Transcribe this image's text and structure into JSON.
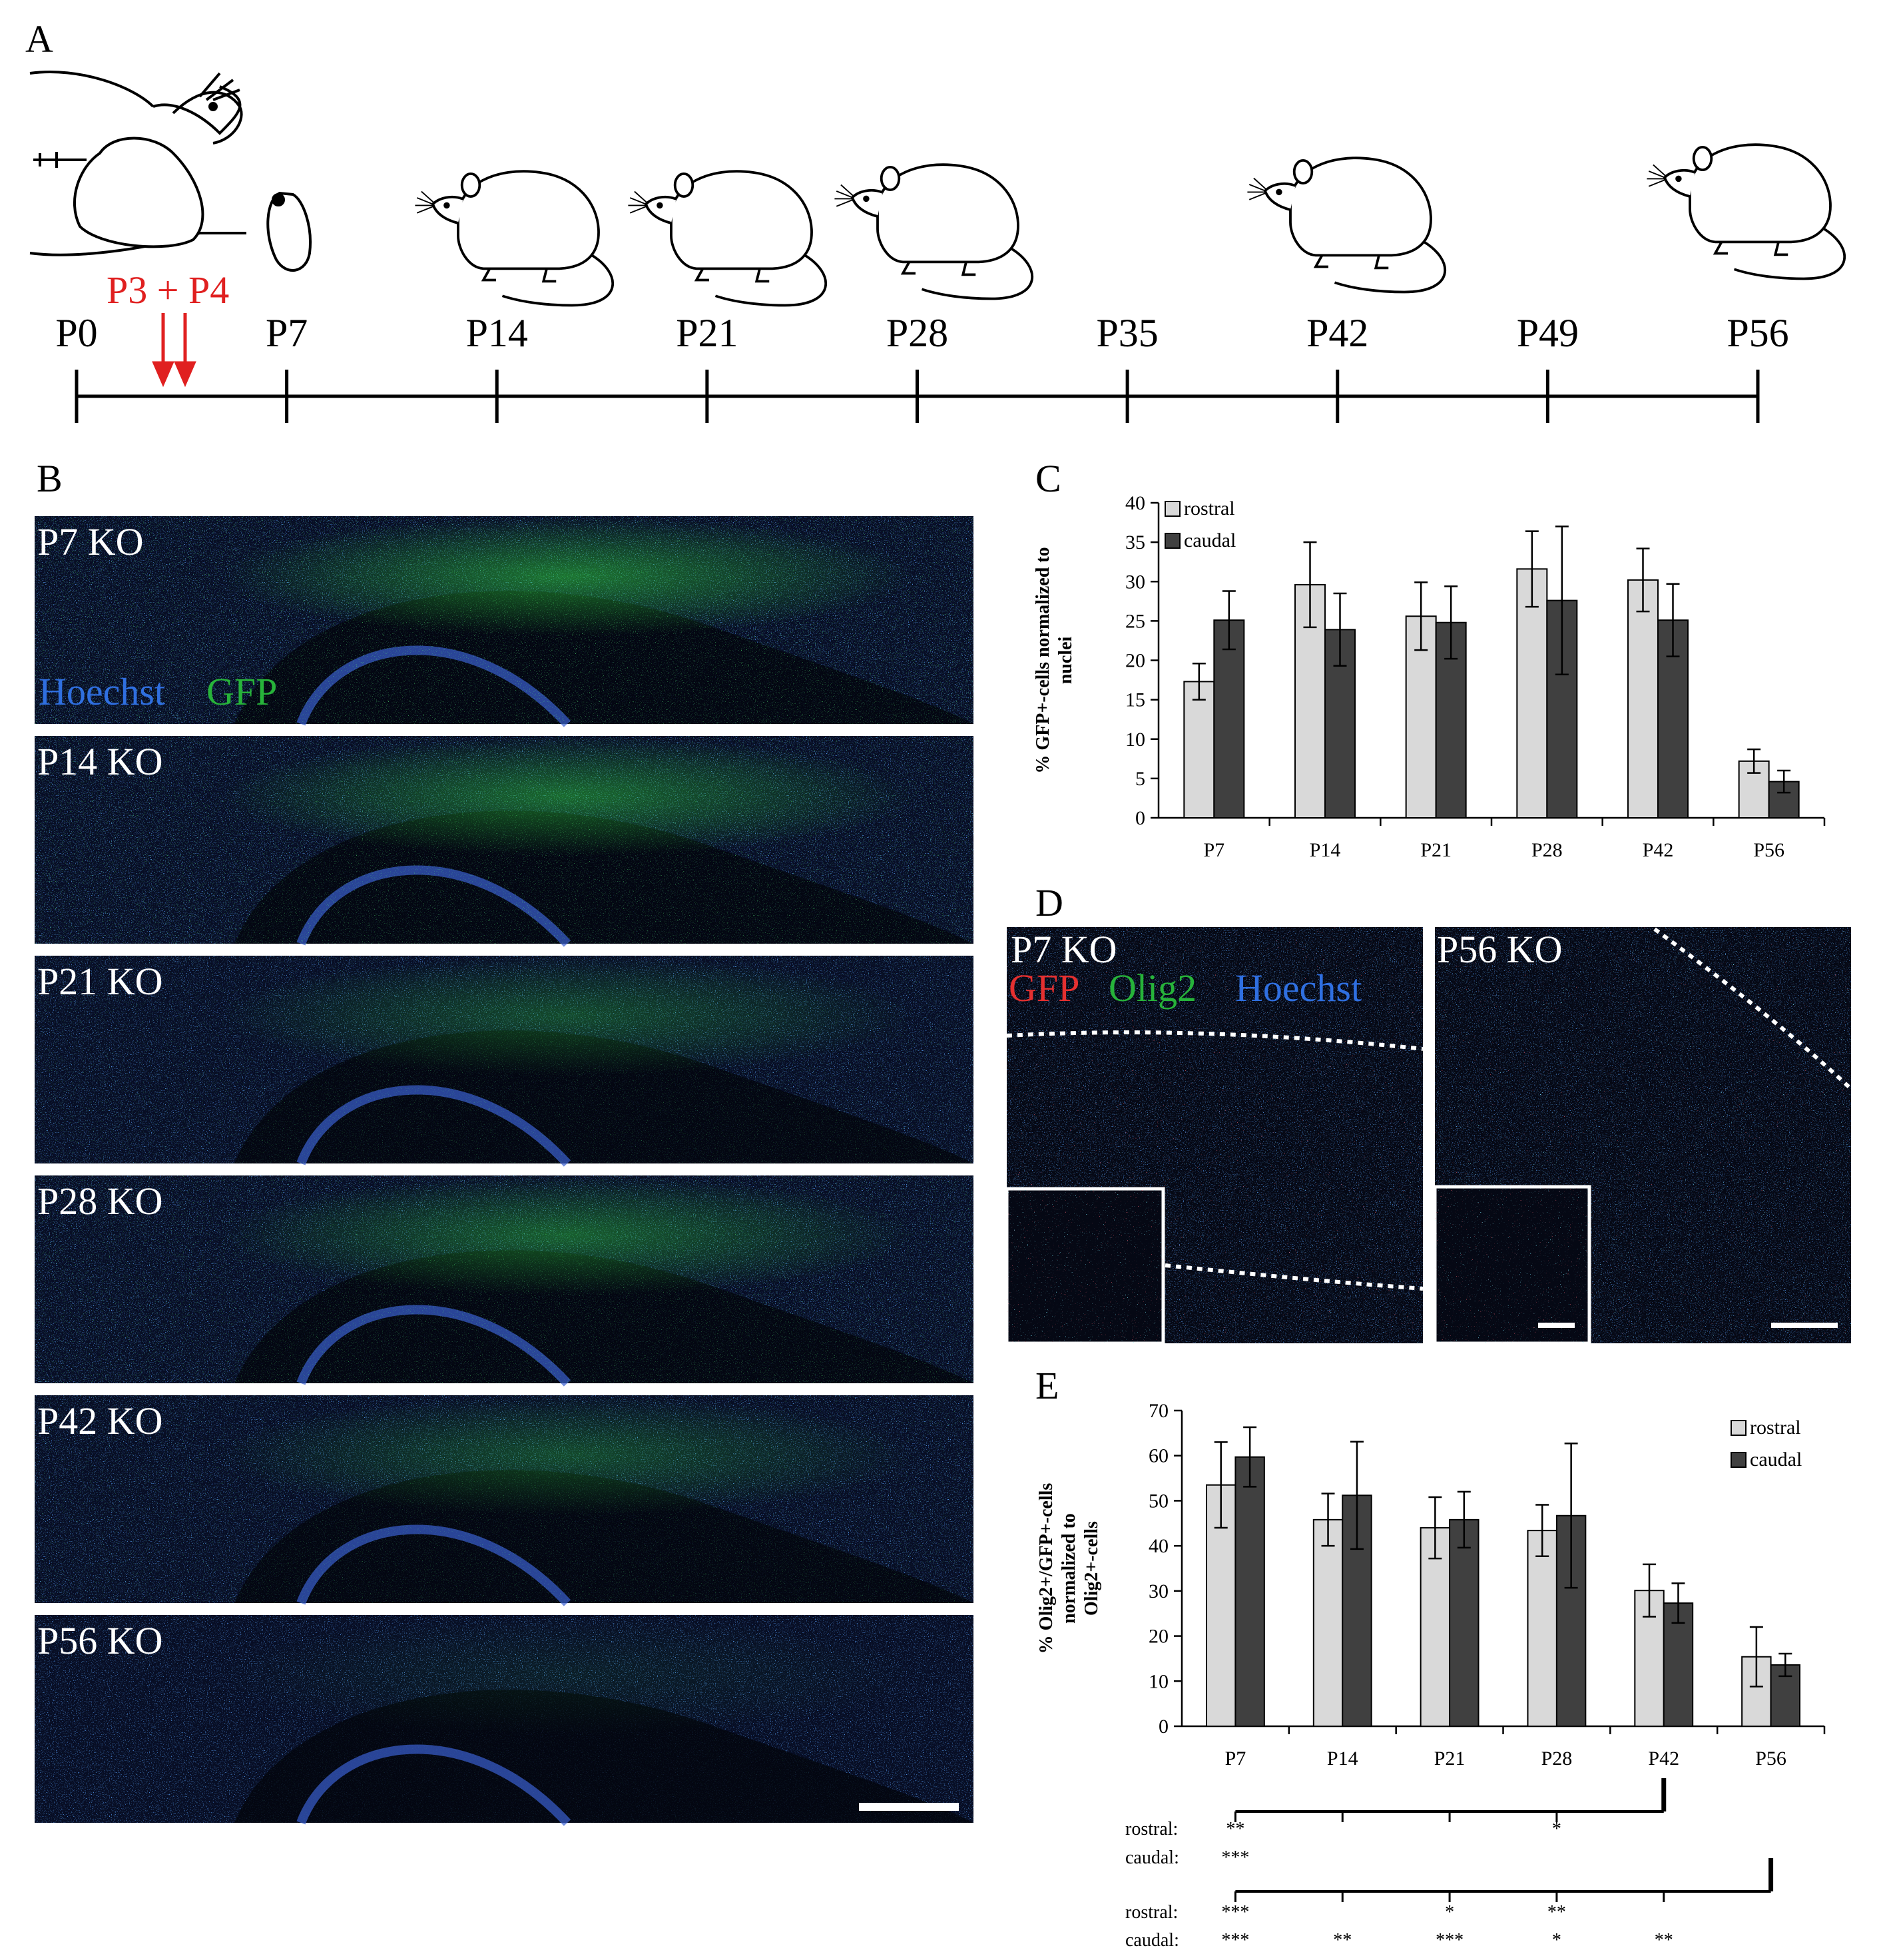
{
  "panels": {
    "A": {
      "letter": "A",
      "injection_label": "P3 + P4",
      "timeline_labels": [
        "P0",
        "P7",
        "P14",
        "P21",
        "P28",
        "P35",
        "P42",
        "P49",
        "P56"
      ]
    },
    "B": {
      "letter": "B",
      "stain_hoechst": "Hoechst",
      "stain_gfp": "GFP",
      "images": [
        {
          "label": "P7 KO"
        },
        {
          "label": "P14 KO"
        },
        {
          "label": "P21 KO"
        },
        {
          "label": "P28 KO"
        },
        {
          "label": "P42 KO"
        },
        {
          "label": "P56 KO"
        }
      ]
    },
    "D": {
      "letter": "D",
      "images": [
        {
          "label": "P7 KO"
        },
        {
          "label": "P56 KO"
        }
      ],
      "stain_gfp": "GFP",
      "stain_olig2": "Olig2",
      "stain_hoechst": "Hoechst"
    }
  },
  "chart_data": [
    {
      "panel": "C",
      "type": "bar",
      "categories": [
        "P7",
        "P14",
        "P21",
        "P28",
        "P42",
        "P56"
      ],
      "ylabel": "% GFP+-cells normalized to nuclei",
      "ylim": [
        0,
        40
      ],
      "yticks": [
        0,
        5,
        10,
        15,
        20,
        25,
        30,
        35,
        40
      ],
      "series": [
        {
          "name": "rostral",
          "color": "#d9d9d9",
          "values": [
            17.3,
            29.6,
            25.6,
            31.6,
            30.2,
            7.2
          ],
          "errors": [
            2.3,
            5.4,
            4.3,
            4.8,
            4.0,
            1.5
          ]
        },
        {
          "name": "caudal",
          "color": "#404040",
          "values": [
            25.1,
            23.9,
            24.8,
            27.6,
            25.1,
            4.6
          ],
          "errors": [
            3.7,
            4.6,
            4.6,
            9.4,
            4.6,
            1.4
          ]
        }
      ],
      "legend": "top-left"
    },
    {
      "panel": "E",
      "type": "bar",
      "categories": [
        "P7",
        "P14",
        "P21",
        "P28",
        "P42",
        "P56"
      ],
      "ylabel": "% Olig2+/GFP+-cells normalized to Olig2+-cells",
      "ylim": [
        0,
        70
      ],
      "yticks": [
        0,
        10,
        20,
        30,
        40,
        50,
        60,
        70
      ],
      "series": [
        {
          "name": "rostral",
          "color": "#d9d9d9",
          "values": [
            53.5,
            45.8,
            44.0,
            43.4,
            30.1,
            15.4
          ],
          "errors": [
            9.5,
            5.8,
            6.8,
            5.7,
            5.8,
            6.6
          ]
        },
        {
          "name": "caudal",
          "color": "#404040",
          "values": [
            59.7,
            51.2,
            45.8,
            46.7,
            27.3,
            13.6
          ],
          "errors": [
            6.6,
            11.9,
            6.2,
            16.0,
            4.4,
            2.5
          ]
        }
      ],
      "legend": "top-right",
      "significance": [
        {
          "comparison_to": "P42",
          "rows": [
            {
              "label": "rostral:",
              "marks": [
                "**",
                "",
                "",
                "*",
                ""
              ]
            },
            {
              "label": "caudal:",
              "marks": [
                "***",
                "",
                "",
                "",
                ""
              ]
            }
          ]
        },
        {
          "comparison_to": "P56",
          "rows": [
            {
              "label": "rostral:",
              "marks": [
                "***",
                "",
                "*",
                "**",
                ""
              ]
            },
            {
              "label": "caudal:",
              "marks": [
                "***",
                "**",
                "***",
                "*",
                "**"
              ]
            }
          ]
        }
      ]
    }
  ]
}
